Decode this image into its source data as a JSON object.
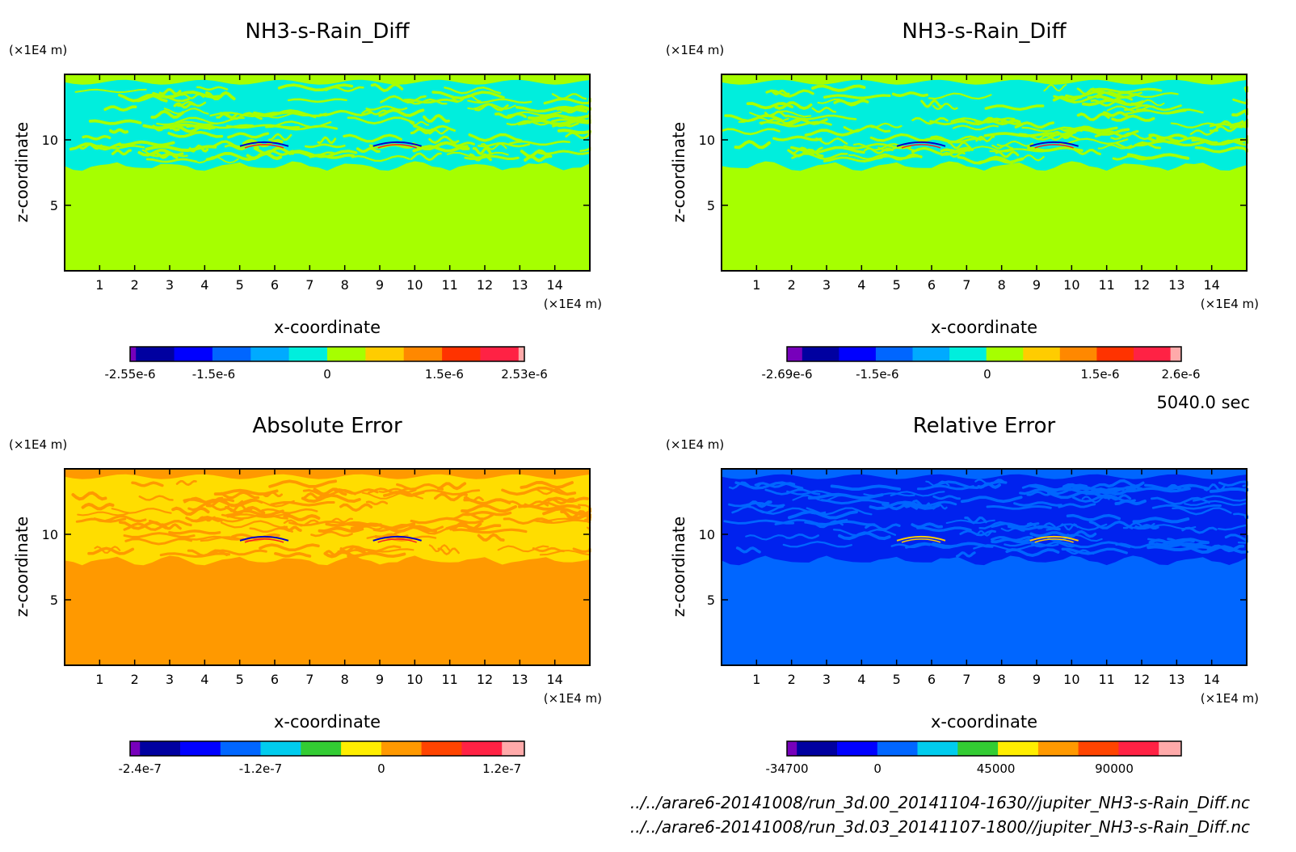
{
  "footer": {
    "time_label": "5040.0 sec",
    "file_a": "../../arare6-20141008/run_3d.00_20141104-1630//jupiter_NH3-s-Rain_Diff.nc",
    "file_b": "../../arare6-20141008/run_3d.03_20141107-1800//jupiter_NH3-s-Rain_Diff.nc"
  },
  "chart_data": [
    {
      "type": "heatmap",
      "title": "NH3-s-Rain_Diff",
      "xlabel": "x-coordinate",
      "ylabel": "z-coordinate",
      "x_unit": "(×1E4 m)",
      "y_unit": "(×1E4 m)",
      "xlim": [
        0,
        15
      ],
      "ylim": [
        0,
        15
      ],
      "x_ticks": [
        1,
        2,
        3,
        4,
        5,
        6,
        7,
        8,
        9,
        10,
        11,
        12,
        13,
        14
      ],
      "y_ticks": [
        5,
        10
      ],
      "background_color": "#a6ff00",
      "band_colors": [
        "#00eedd",
        "#a6ff00"
      ],
      "feature_colors": [
        "#0000cc",
        "#ff2020"
      ],
      "layer": {
        "z_bottom": 8.0,
        "z_top": 14.4
      },
      "colorbar": {
        "colors": [
          "#7700bb",
          "#0000a0",
          "#0000ff",
          "#0066ff",
          "#00aaff",
          "#00eedd",
          "#a6ff00",
          "#ffcc00",
          "#ff8800",
          "#ff3300",
          "#ff2244",
          "#ffaaaa"
        ],
        "fractions": [
          0.015,
          0.098,
          0.098,
          0.098,
          0.098,
          0.098,
          0.098,
          0.098,
          0.098,
          0.098,
          0.098,
          0.015
        ],
        "tick_labels": [
          "-2.55e-6",
          "-1.5e-6",
          "0",
          "1.5e-6",
          "2.53e-6"
        ],
        "tick_positions": [
          0.0,
          0.212,
          0.5,
          0.797,
          1.0
        ]
      }
    },
    {
      "type": "heatmap",
      "title": "NH3-s-Rain_Diff",
      "xlabel": "x-coordinate",
      "ylabel": "z-coordinate",
      "x_unit": "(×1E4 m)",
      "y_unit": "(×1E4 m)",
      "xlim": [
        0,
        15
      ],
      "ylim": [
        0,
        15
      ],
      "x_ticks": [
        1,
        2,
        3,
        4,
        5,
        6,
        7,
        8,
        9,
        10,
        11,
        12,
        13,
        14
      ],
      "y_ticks": [
        5,
        10
      ],
      "background_color": "#a6ff00",
      "band_colors": [
        "#00eedd",
        "#a6ff00"
      ],
      "feature_colors": [
        "#0000cc",
        "#ff2020"
      ],
      "layer": {
        "z_bottom": 8.0,
        "z_top": 14.4
      },
      "colorbar": {
        "colors": [
          "#7700bb",
          "#0000a0",
          "#0000ff",
          "#0066ff",
          "#00aaff",
          "#00eedd",
          "#a6ff00",
          "#ffcc00",
          "#ff8800",
          "#ff3300",
          "#ff2244",
          "#ffaaaa"
        ],
        "fractions": [
          0.035,
          0.085,
          0.085,
          0.085,
          0.085,
          0.085,
          0.085,
          0.085,
          0.085,
          0.085,
          0.085,
          0.025
        ],
        "tick_labels": [
          "-2.69e-6",
          "-1.5e-6",
          "0",
          "1.5e-6",
          "2.6e-6"
        ],
        "tick_positions": [
          0.0,
          0.229,
          0.508,
          0.794,
          0.999
        ]
      }
    },
    {
      "type": "heatmap",
      "title": "Absolute Error",
      "xlabel": "x-coordinate",
      "ylabel": "z-coordinate",
      "x_unit": "(×1E4 m)",
      "y_unit": "(×1E4 m)",
      "xlim": [
        0,
        15
      ],
      "ylim": [
        0,
        15
      ],
      "x_ticks": [
        1,
        2,
        3,
        4,
        5,
        6,
        7,
        8,
        9,
        10,
        11,
        12,
        13,
        14
      ],
      "y_ticks": [
        5,
        10
      ],
      "background_color": "#ff9900",
      "band_colors": [
        "#ffdd00",
        "#ff9900"
      ],
      "feature_colors": [
        "#0000cc",
        "#ff2020"
      ],
      "layer": {
        "z_bottom": 8.0,
        "z_top": 14.4
      },
      "colorbar": {
        "colors": [
          "#7700bb",
          "#0000a0",
          "#0000ff",
          "#0066ff",
          "#00ccee",
          "#33cc33",
          "#ffee00",
          "#ff9900",
          "#ff4400",
          "#ff2244",
          "#ffaaaa"
        ],
        "fractions": [
          0.025,
          0.102,
          0.102,
          0.102,
          0.102,
          0.102,
          0.102,
          0.102,
          0.102,
          0.102,
          0.057
        ],
        "tick_labels": [
          "-2.4e-7",
          "-1.2e-7",
          "0",
          "1.2e-7"
        ],
        "tick_positions": [
          0.025,
          0.331,
          0.637,
          0.943
        ]
      }
    },
    {
      "type": "heatmap",
      "title": "Relative Error",
      "xlabel": "x-coordinate",
      "ylabel": "z-coordinate",
      "x_unit": "(×1E4 m)",
      "y_unit": "(×1E4 m)",
      "xlim": [
        0,
        15
      ],
      "ylim": [
        0,
        15
      ],
      "x_ticks": [
        1,
        2,
        3,
        4,
        5,
        6,
        7,
        8,
        9,
        10,
        11,
        12,
        13,
        14
      ],
      "y_ticks": [
        5,
        10
      ],
      "background_color": "#0066ff",
      "band_colors": [
        "#0022ee",
        "#0066ff"
      ],
      "feature_colors": [
        "#ffcc00",
        "#ffcc00"
      ],
      "layer": {
        "z_bottom": 8.0,
        "z_top": 14.4
      },
      "colorbar": {
        "colors": [
          "#7700bb",
          "#0000a0",
          "#0000ff",
          "#0066ff",
          "#00ccee",
          "#33cc33",
          "#ffee00",
          "#ff9900",
          "#ff4400",
          "#ff2244",
          "#ffaaaa"
        ],
        "fractions": [
          0.025,
          0.102,
          0.102,
          0.102,
          0.102,
          0.102,
          0.102,
          0.102,
          0.102,
          0.102,
          0.057
        ],
        "tick_labels": [
          "-34700",
          "0",
          "45000",
          "90000"
        ],
        "tick_positions": [
          0.0,
          0.23,
          0.53,
          0.83
        ]
      }
    }
  ]
}
